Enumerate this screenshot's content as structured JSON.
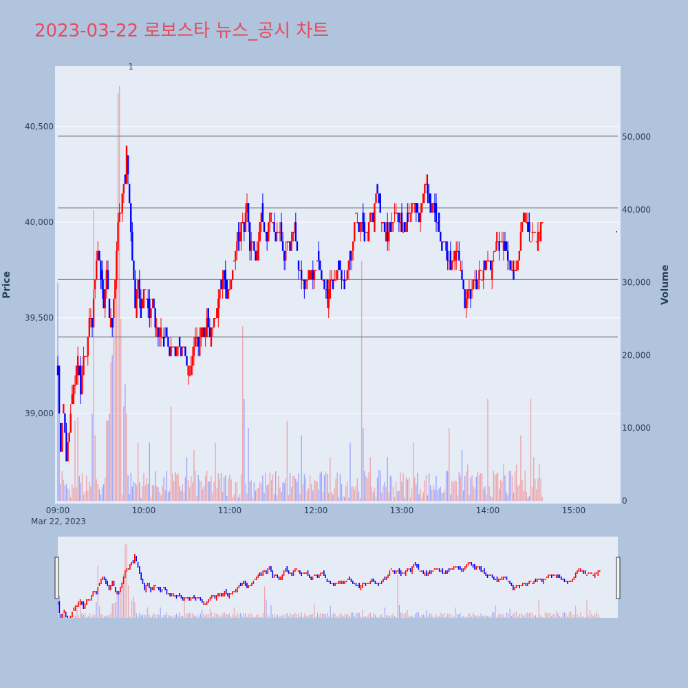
{
  "title": "2023-03-22 로보스타 뉴스_공시 차트",
  "colors": {
    "up": "#ff0000",
    "down": "#0000ff",
    "plot_bg": "#e5ecf6",
    "page_bg": "#b0c4de",
    "title": "#e64a5e",
    "hline": "#808080"
  },
  "chart_data": {
    "type": "candlestick",
    "date_label": "Mar 22, 2023",
    "yaxis": {
      "title": "Price",
      "range": [
        38550,
        40780
      ],
      "ticks": [
        {
          "v": 39000,
          "label": "39,000"
        },
        {
          "v": 39500,
          "label": "39,500"
        },
        {
          "v": 40000,
          "label": "40,000"
        },
        {
          "v": 40500,
          "label": "40,500"
        }
      ]
    },
    "y2axis": {
      "title": "Volume",
      "range": [
        0,
        59000
      ],
      "ticks": [
        {
          "v": 0,
          "label": "0"
        },
        {
          "v": 10000,
          "label": "10,000"
        },
        {
          "v": 20000,
          "label": "20,000"
        },
        {
          "v": 30000,
          "label": "30,000"
        },
        {
          "v": 40000,
          "label": "40,000"
        },
        {
          "v": 50000,
          "label": "50,000"
        }
      ]
    },
    "xaxis": {
      "ticks": [
        {
          "m": 0,
          "label": "09:00"
        },
        {
          "m": 60,
          "label": "10:00"
        },
        {
          "m": 120,
          "label": "11:00"
        },
        {
          "m": 180,
          "label": "12:00"
        },
        {
          "m": 240,
          "label": "13:00"
        },
        {
          "m": 300,
          "label": "14:00"
        },
        {
          "m": 360,
          "label": "15:00"
        }
      ]
    },
    "horizontal_lines": [
      39400,
      39700,
      40075,
      40450
    ],
    "annotation": {
      "text": "1",
      "minute": 50
    },
    "price_path": [
      [
        0,
        39200
      ],
      [
        2,
        38800
      ],
      [
        4,
        39050
      ],
      [
        6,
        38750
      ],
      [
        8,
        38900
      ],
      [
        10,
        39100
      ],
      [
        12,
        39150
      ],
      [
        14,
        39300
      ],
      [
        16,
        39100
      ],
      [
        18,
        39300
      ],
      [
        20,
        39300
      ],
      [
        22,
        39500
      ],
      [
        24,
        39450
      ],
      [
        26,
        39700
      ],
      [
        28,
        39850
      ],
      [
        30,
        39700
      ],
      [
        32,
        39550
      ],
      [
        34,
        39750
      ],
      [
        36,
        39500
      ],
      [
        38,
        39450
      ],
      [
        40,
        39700
      ],
      [
        42,
        40000
      ],
      [
        44,
        40050
      ],
      [
        45,
        40150
      ],
      [
        47,
        40200
      ],
      [
        48,
        40400
      ],
      [
        50,
        40100
      ],
      [
        52,
        39800
      ],
      [
        54,
        39550
      ],
      [
        56,
        39700
      ],
      [
        58,
        39500
      ],
      [
        60,
        39650
      ],
      [
        62,
        39600
      ],
      [
        64,
        39500
      ],
      [
        66,
        39600
      ],
      [
        68,
        39450
      ],
      [
        70,
        39400
      ],
      [
        72,
        39450
      ],
      [
        74,
        39350
      ],
      [
        76,
        39400
      ],
      [
        78,
        39300
      ],
      [
        80,
        39350
      ],
      [
        82,
        39300
      ],
      [
        84,
        39350
      ],
      [
        86,
        39300
      ],
      [
        88,
        39350
      ],
      [
        90,
        39250
      ],
      [
        92,
        39200
      ],
      [
        94,
        39300
      ],
      [
        96,
        39400
      ],
      [
        98,
        39350
      ],
      [
        100,
        39450
      ],
      [
        102,
        39400
      ],
      [
        104,
        39500
      ],
      [
        106,
        39400
      ],
      [
        108,
        39450
      ],
      [
        110,
        39500
      ],
      [
        112,
        39600
      ],
      [
        114,
        39650
      ],
      [
        116,
        39700
      ],
      [
        118,
        39600
      ],
      [
        120,
        39650
      ],
      [
        122,
        39750
      ],
      [
        124,
        39850
      ],
      [
        126,
        39900
      ],
      [
        128,
        40000
      ],
      [
        130,
        39950
      ],
      [
        132,
        40100
      ],
      [
        134,
        39850
      ],
      [
        136,
        39900
      ],
      [
        138,
        39800
      ],
      [
        140,
        39900
      ],
      [
        142,
        40050
      ],
      [
        144,
        39950
      ],
      [
        146,
        39900
      ],
      [
        148,
        40050
      ],
      [
        150,
        40000
      ],
      [
        152,
        39900
      ],
      [
        154,
        39950
      ],
      [
        156,
        39900
      ],
      [
        158,
        39800
      ],
      [
        160,
        39900
      ],
      [
        162,
        39850
      ],
      [
        164,
        39950
      ],
      [
        166,
        39900
      ],
      [
        168,
        39750
      ],
      [
        170,
        39700
      ],
      [
        172,
        39650
      ],
      [
        174,
        39700
      ],
      [
        176,
        39750
      ],
      [
        178,
        39700
      ],
      [
        180,
        39750
      ],
      [
        182,
        39800
      ],
      [
        184,
        39700
      ],
      [
        186,
        39650
      ],
      [
        188,
        39600
      ],
      [
        190,
        39700
      ],
      [
        192,
        39650
      ],
      [
        194,
        39700
      ],
      [
        196,
        39750
      ],
      [
        198,
        39700
      ],
      [
        200,
        39650
      ],
      [
        202,
        39750
      ],
      [
        204,
        39800
      ],
      [
        206,
        39900
      ],
      [
        208,
        40050
      ],
      [
        210,
        39950
      ],
      [
        212,
        40000
      ],
      [
        214,
        39900
      ],
      [
        216,
        39950
      ],
      [
        218,
        40050
      ],
      [
        220,
        40000
      ],
      [
        222,
        40150
      ],
      [
        224,
        40100
      ],
      [
        226,
        40000
      ],
      [
        228,
        39950
      ],
      [
        230,
        39900
      ],
      [
        232,
        39950
      ],
      [
        234,
        40000
      ],
      [
        236,
        40050
      ],
      [
        238,
        40000
      ],
      [
        240,
        39950
      ],
      [
        242,
        39950
      ],
      [
        244,
        40000
      ],
      [
        246,
        40050
      ],
      [
        248,
        40100
      ],
      [
        250,
        40050
      ],
      [
        252,
        40000
      ],
      [
        254,
        40100
      ],
      [
        256,
        40200
      ],
      [
        258,
        40150
      ],
      [
        260,
        40050
      ],
      [
        262,
        40100
      ],
      [
        264,
        40000
      ],
      [
        266,
        39950
      ],
      [
        268,
        39850
      ],
      [
        270,
        39900
      ],
      [
        272,
        39800
      ],
      [
        274,
        39750
      ],
      [
        276,
        39800
      ],
      [
        278,
        39850
      ],
      [
        280,
        39800
      ],
      [
        282,
        39700
      ],
      [
        284,
        39550
      ],
      [
        286,
        39650
      ],
      [
        288,
        39600
      ],
      [
        290,
        39700
      ],
      [
        292,
        39650
      ],
      [
        294,
        39750
      ],
      [
        296,
        39700
      ],
      [
        298,
        39750
      ],
      [
        300,
        39800
      ],
      [
        302,
        39750
      ],
      [
        304,
        39800
      ],
      [
        306,
        39900
      ],
      [
        308,
        39850
      ],
      [
        310,
        39900
      ],
      [
        312,
        39850
      ],
      [
        314,
        39800
      ],
      [
        316,
        39750
      ],
      [
        318,
        39700
      ],
      [
        320,
        39750
      ],
      [
        322,
        39850
      ],
      [
        324,
        40000
      ],
      [
        326,
        40050
      ],
      [
        328,
        39950
      ],
      [
        330,
        39900
      ],
      [
        332,
        39950
      ],
      [
        334,
        39900
      ],
      [
        336,
        39950
      ],
      [
        338,
        40000
      ]
    ],
    "volume_spikes": [
      [
        0,
        30000
      ],
      [
        1,
        17000
      ],
      [
        12,
        11000
      ],
      [
        14,
        11500
      ],
      [
        24,
        12000
      ],
      [
        25,
        40000
      ],
      [
        26,
        9000
      ],
      [
        34,
        11000
      ],
      [
        35,
        11000
      ],
      [
        36,
        12000
      ],
      [
        37,
        19000
      ],
      [
        38,
        20000
      ],
      [
        39,
        24000
      ],
      [
        40,
        28000
      ],
      [
        41,
        33000
      ],
      [
        42,
        56000
      ],
      [
        43,
        57000
      ],
      [
        44,
        25000
      ],
      [
        46,
        13000
      ],
      [
        47,
        16000
      ],
      [
        48,
        12000
      ],
      [
        56,
        8000
      ],
      [
        64,
        8000
      ],
      [
        79,
        13000
      ],
      [
        90,
        6000
      ],
      [
        95,
        7000
      ],
      [
        110,
        8000
      ],
      [
        129,
        24000
      ],
      [
        130,
        14000
      ],
      [
        133,
        10000
      ],
      [
        160,
        11000
      ],
      [
        170,
        9000
      ],
      [
        190,
        6000
      ],
      [
        204,
        8000
      ],
      [
        212,
        33000
      ],
      [
        213,
        10000
      ],
      [
        218,
        6000
      ],
      [
        230,
        6000
      ],
      [
        248,
        8000
      ],
      [
        273,
        10000
      ],
      [
        282,
        7000
      ],
      [
        286,
        5000
      ],
      [
        300,
        14000
      ],
      [
        311,
        5000
      ],
      [
        320,
        5000
      ],
      [
        323,
        9000
      ],
      [
        330,
        14000
      ],
      [
        332,
        6000
      ],
      [
        336,
        5000
      ],
      [
        339,
        4000
      ],
      [
        341,
        19000
      ]
    ]
  }
}
